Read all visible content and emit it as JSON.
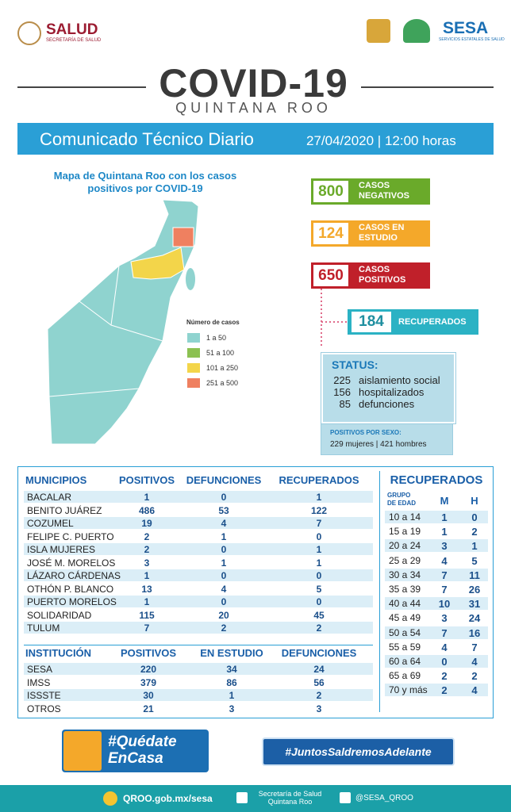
{
  "header": {
    "salud": "SALUD",
    "salud_sub": "SECRETARÍA DE SALUD",
    "sesa": "SESA",
    "sesa_sub": "SERVICIOS ESTATALES DE SALUD",
    "title": "COVID-19",
    "subtitle": "QUINTANA ROO"
  },
  "banner": {
    "title": "Comunicado Técnico Diario",
    "date": "27/04/2020 | 12:00 horas"
  },
  "map": {
    "title": "Mapa de Quintana Roo con los casos positivos por COVID-19",
    "legend_title": "Número de casos",
    "legend": [
      {
        "label": "1 a 50",
        "color": "#8fd3cf"
      },
      {
        "label": "51 a 100",
        "color": "#8cc152"
      },
      {
        "label": "101 a 250",
        "color": "#f3d54a"
      },
      {
        "label": "251 a 500",
        "color": "#ef8060"
      }
    ]
  },
  "cases": [
    {
      "value": 800,
      "label": "CASOS NEGATIVOS",
      "color": "#6aaa2a"
    },
    {
      "value": 124,
      "label": "CASOS EN ESTUDIO",
      "color": "#f4a82a"
    },
    {
      "value": 650,
      "label": "CASOS POSITIVOS",
      "color": "#c0202a"
    }
  ],
  "recovered": {
    "value": 184,
    "label": "RECUPERADOS"
  },
  "status": {
    "title": "STATUS:",
    "items": [
      {
        "value": 225,
        "label": "aislamiento social"
      },
      {
        "value": 156,
        "label": "hospitalizados"
      },
      {
        "value": 85,
        "label": "defunciones"
      }
    ]
  },
  "sex": {
    "title": "POSITIVOS POR SEXO:",
    "text": "229 mujeres | 421 hombres"
  },
  "municipios": {
    "headers": [
      "MUNICIPIOS",
      "POSITIVOS",
      "DEFUNCIONES",
      "RECUPERADOS"
    ],
    "rows": [
      [
        "BACALAR",
        1,
        0,
        1
      ],
      [
        "BENITO JUÁREZ",
        486,
        53,
        122
      ],
      [
        "COZUMEL",
        19,
        4,
        7
      ],
      [
        "FELIPE C. PUERTO",
        2,
        1,
        0
      ],
      [
        "ISLA MUJERES",
        2,
        0,
        1
      ],
      [
        "JOSÉ M. MORELOS",
        3,
        1,
        1
      ],
      [
        "LÁZARO CÁRDENAS",
        1,
        0,
        0
      ],
      [
        "OTHÓN P. BLANCO",
        13,
        4,
        5
      ],
      [
        "PUERTO MORELOS",
        1,
        0,
        0
      ],
      [
        "SOLIDARIDAD",
        115,
        20,
        45
      ],
      [
        "TULUM",
        7,
        2,
        2
      ]
    ]
  },
  "instituciones": {
    "headers": [
      "INSTITUCIÓN",
      "POSITIVOS",
      "EN ESTUDIO",
      "DEFUNCIONES"
    ],
    "rows": [
      [
        "SESA",
        220,
        34,
        24
      ],
      [
        "IMSS",
        379,
        86,
        56
      ],
      [
        "ISSSTE",
        30,
        1,
        2
      ],
      [
        "OTROS",
        21,
        3,
        3
      ]
    ]
  },
  "edades": {
    "title": "RECUPERADOS",
    "headers": [
      "GRUPO DE EDAD",
      "M",
      "H"
    ],
    "rows": [
      [
        "10 a 14",
        1,
        0
      ],
      [
        "15 a 19",
        1,
        2
      ],
      [
        "20 a 24",
        3,
        1
      ],
      [
        "25 a 29",
        4,
        5
      ],
      [
        "30 a 34",
        7,
        11
      ],
      [
        "35 a 39",
        7,
        26
      ],
      [
        "40 a 44",
        10,
        31
      ],
      [
        "45 a 49",
        3,
        24
      ],
      [
        "50 a 54",
        7,
        16
      ],
      [
        "55 a 59",
        4,
        7
      ],
      [
        "60 a 64",
        0,
        4
      ],
      [
        "65 a 69",
        2,
        2
      ],
      [
        "70 y más",
        2,
        4
      ]
    ]
  },
  "footer": {
    "quedate": "#Quédate EnCasa",
    "juntos": "#JuntosSaldremosAdelante",
    "web": "QROO.gob.mx/sesa",
    "secretaria": "Secretaría de Salud Quintana Roo",
    "twitter": "@SESA_QROO"
  }
}
